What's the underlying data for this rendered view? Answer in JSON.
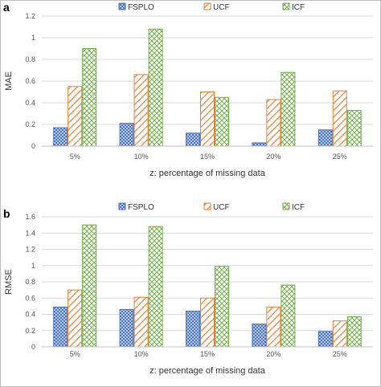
{
  "chart_data": [
    {
      "type": "bar",
      "panel_label": "a",
      "categories": [
        "5%",
        "10%",
        "15%",
        "20%",
        "25%"
      ],
      "series": [
        {
          "name": "FSPLO",
          "values": [
            0.17,
            0.21,
            0.12,
            0.03,
            0.15
          ]
        },
        {
          "name": "UCF",
          "values": [
            0.55,
            0.66,
            0.5,
            0.43,
            0.51
          ]
        },
        {
          "name": "ICF",
          "values": [
            0.9,
            1.08,
            0.45,
            0.68,
            0.33
          ]
        }
      ],
      "xlabel": "z: percentage of missing data",
      "ylabel": "MAE",
      "ylim": [
        0,
        1.2
      ],
      "yticks": [
        "0",
        "0.2",
        "0.4",
        "0.6",
        "0.8",
        "1",
        "1.2"
      ],
      "legend_position": "top",
      "grid": true
    },
    {
      "type": "bar",
      "panel_label": "b",
      "categories": [
        "5%",
        "10%",
        "15%",
        "20%",
        "25%"
      ],
      "series": [
        {
          "name": "FSPLO",
          "values": [
            0.49,
            0.46,
            0.44,
            0.28,
            0.19
          ]
        },
        {
          "name": "UCF",
          "values": [
            0.7,
            0.61,
            0.6,
            0.49,
            0.32
          ]
        },
        {
          "name": "ICF",
          "values": [
            1.5,
            1.48,
            0.99,
            0.76,
            0.37
          ]
        }
      ],
      "xlabel": "z: percentage of missing data",
      "ylabel": "RMSE",
      "ylim": [
        0,
        1.6
      ],
      "yticks": [
        "0",
        "0.2",
        "0.4",
        "0.6",
        "0.8",
        "1",
        "1.2",
        "1.4",
        "1.6"
      ],
      "legend_position": "top",
      "grid": true
    }
  ],
  "colors": {
    "FSPLO": "#4472c4",
    "UCF": "#ed7d31",
    "ICF": "#70ad47",
    "grid": "#d9d9d9",
    "frame": "#bfbfbf"
  }
}
